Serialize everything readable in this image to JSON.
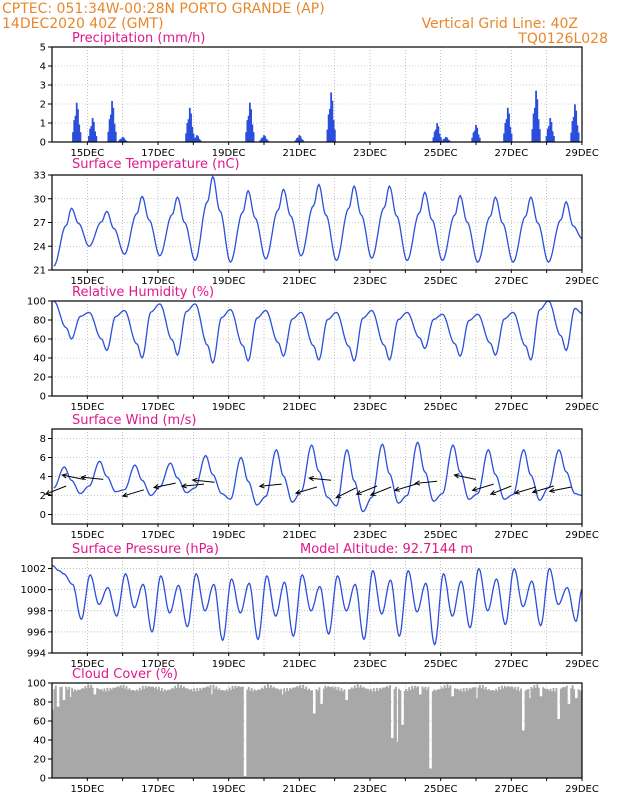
{
  "header": {
    "line1": "CPTEC:   051:34W-00:28N   PORTO GRANDE (AP)",
    "line2": "14DEC2020 40Z (GMT)",
    "grid_note": "Vertical Grid Line: 40Z",
    "code": "TQ0126L028"
  },
  "colors": {
    "header": "#e8872c",
    "title": "#e0188c",
    "series": "#2b4fdb",
    "cloud": "#a8a8a8",
    "grid": "#9a9a9a"
  },
  "chart_data": [
    {
      "type": "bar",
      "title": "Precipitation (mm/h)",
      "x_tick_labels": [
        "15DEC",
        "17DEC",
        "19DEC",
        "21DEC",
        "23DEC",
        "25DEC",
        "27DEC",
        "29DEC"
      ],
      "x_range_days": [
        14.0,
        29.0
      ],
      "ylim": [
        0,
        5
      ],
      "y_ticks": [
        0,
        1,
        2,
        3,
        4,
        5
      ],
      "grid": true,
      "events": [
        {
          "day": 14.7,
          "peak": 2.3
        },
        {
          "day": 15.15,
          "peak": 1.4
        },
        {
          "day": 15.7,
          "peak": 2.4
        },
        {
          "day": 16.0,
          "peak": 0.3
        },
        {
          "day": 17.9,
          "peak": 2.0
        },
        {
          "day": 18.1,
          "peak": 0.4
        },
        {
          "day": 19.6,
          "peak": 2.3
        },
        {
          "day": 20.0,
          "peak": 0.4
        },
        {
          "day": 21.0,
          "peak": 0.4
        },
        {
          "day": 21.9,
          "peak": 2.9
        },
        {
          "day": 24.9,
          "peak": 1.1
        },
        {
          "day": 25.15,
          "peak": 0.3
        },
        {
          "day": 26.0,
          "peak": 1.0
        },
        {
          "day": 26.9,
          "peak": 2.0
        },
        {
          "day": 27.7,
          "peak": 3.0
        },
        {
          "day": 28.1,
          "peak": 1.4
        },
        {
          "day": 28.8,
          "peak": 2.2
        }
      ]
    },
    {
      "type": "line",
      "title": "Surface Temperature (nC)",
      "x_tick_labels": [
        "15DEC",
        "17DEC",
        "19DEC",
        "21DEC",
        "23DEC",
        "25DEC",
        "27DEC",
        "29DEC"
      ],
      "x_range_days": [
        14.0,
        29.0
      ],
      "ylim": [
        21,
        33
      ],
      "y_ticks": [
        21,
        24,
        27,
        30,
        33
      ],
      "grid": true,
      "daily_max": [
        28.8,
        28.4,
        30.3,
        30.2,
        32.8,
        31.0,
        31.2,
        31.8,
        31.6,
        31.6,
        30.8,
        30.4,
        30.2,
        30.2,
        29.6
      ],
      "daily_min": [
        21.0,
        24.0,
        23.0,
        22.8,
        22.2,
        22.0,
        22.4,
        22.8,
        22.2,
        22.5,
        22.2,
        22.2,
        22.0,
        22.0,
        22.0
      ],
      "end_value": 25.0
    },
    {
      "type": "line",
      "title": "Relative Humidity (%)",
      "x_tick_labels": [
        "15DEC",
        "17DEC",
        "19DEC",
        "21DEC",
        "23DEC",
        "25DEC",
        "27DEC",
        "29DEC"
      ],
      "x_range_days": [
        14.0,
        29.0
      ],
      "ylim": [
        0,
        100
      ],
      "y_ticks": [
        0,
        20,
        40,
        60,
        80,
        100
      ],
      "grid": true,
      "daily_max": [
        100,
        88,
        90,
        97,
        97,
        91,
        90,
        88,
        88,
        90,
        88,
        86,
        86,
        88,
        100
      ],
      "daily_min": [
        60,
        48,
        40,
        43,
        35,
        37,
        42,
        38,
        37,
        38,
        50,
        42,
        43,
        38,
        48
      ],
      "end_value": 87
    },
    {
      "type": "line",
      "title": "Surface Wind (m/s)",
      "x_tick_labels": [
        "15DEC",
        "17DEC",
        "19DEC",
        "21DEC",
        "23DEC",
        "25DEC",
        "27DEC",
        "29DEC"
      ],
      "x_range_days": [
        14.0,
        29.0
      ],
      "ylim": [
        -1,
        9
      ],
      "y_ticks": [
        0,
        2,
        4,
        6,
        8
      ],
      "grid": true,
      "daily_max": [
        5.0,
        5.6,
        5.2,
        5.4,
        6.2,
        6.0,
        6.8,
        7.3,
        6.8,
        7.4,
        7.6,
        7.3,
        6.8,
        6.8,
        6.8
      ],
      "daily_min": [
        2.2,
        2.4,
        2.0,
        2.3,
        2.2,
        1.0,
        1.3,
        1.8,
        0.3,
        1.2,
        1.4,
        1.6,
        1.6,
        1.5,
        2.2
      ],
      "vectors": [
        {
          "day": 14.4,
          "y": 3.0,
          "dx": -1,
          "dy": -0.4
        },
        {
          "day": 14.9,
          "y": 3.7,
          "dx": -1,
          "dy": 0.2
        },
        {
          "day": 15.45,
          "y": 3.7,
          "dx": -1,
          "dy": 0.1
        },
        {
          "day": 16.6,
          "y": 2.6,
          "dx": -1,
          "dy": -0.3
        },
        {
          "day": 17.5,
          "y": 3.3,
          "dx": -1,
          "dy": -0.2
        },
        {
          "day": 18.3,
          "y": 3.2,
          "dx": -1,
          "dy": -0.1
        },
        {
          "day": 18.6,
          "y": 3.4,
          "dx": -1,
          "dy": 0.1
        },
        {
          "day": 20.5,
          "y": 3.2,
          "dx": -1,
          "dy": -0.1
        },
        {
          "day": 21.5,
          "y": 2.9,
          "dx": -1,
          "dy": -0.3
        },
        {
          "day": 21.9,
          "y": 3.6,
          "dx": -1,
          "dy": 0.1
        },
        {
          "day": 22.6,
          "y": 2.8,
          "dx": -1,
          "dy": -0.5
        },
        {
          "day": 23.2,
          "y": 3.0,
          "dx": -1,
          "dy": -0.4
        },
        {
          "day": 23.6,
          "y": 2.9,
          "dx": -1,
          "dy": -0.4
        },
        {
          "day": 24.3,
          "y": 3.2,
          "dx": -1,
          "dy": -0.3
        },
        {
          "day": 24.9,
          "y": 3.5,
          "dx": -1,
          "dy": -0.1
        },
        {
          "day": 26.0,
          "y": 3.7,
          "dx": -1,
          "dy": 0.2
        },
        {
          "day": 26.5,
          "y": 3.2,
          "dx": -1,
          "dy": -0.3
        },
        {
          "day": 27.0,
          "y": 3.0,
          "dx": -1,
          "dy": -0.4
        },
        {
          "day": 27.7,
          "y": 2.9,
          "dx": -1,
          "dy": -0.3
        },
        {
          "day": 28.2,
          "y": 3.0,
          "dx": -1,
          "dy": -0.3
        },
        {
          "day": 28.7,
          "y": 2.9,
          "dx": -1,
          "dy": -0.2
        }
      ]
    },
    {
      "type": "line",
      "title": "Surface Pressure (hPa)",
      "annotation": "Model Altitude: 92.7144 m",
      "x_tick_labels": [
        "15DEC",
        "17DEC",
        "19DEC",
        "21DEC",
        "23DEC",
        "25DEC",
        "27DEC",
        "29DEC"
      ],
      "x_range_days": [
        14.0,
        29.0
      ],
      "ylim": [
        994,
        1003
      ],
      "y_ticks": [
        994,
        996,
        998,
        1000,
        1002
      ],
      "grid": true,
      "semidiurnal_max": [
        1002.2,
        1000.5,
        1001.4,
        1000.2,
        1001.5,
        1000.5,
        1001.3,
        1000.4,
        1001.5,
        1000.5,
        1001.0,
        1000.6,
        1001.3,
        1000.7,
        1001.4,
        1000.3,
        1001.3,
        1000.5,
        1001.8,
        1000.9,
        1001.8,
        1000.6,
        1001.5,
        1000.8,
        1002.0,
        1001.0,
        1002.0,
        1000.8,
        1002.0,
        1000.2
      ],
      "semidiurnal_min": [
        1001.5,
        997.2,
        998.6,
        997.5,
        998.3,
        996.0,
        997.8,
        996.5,
        998.0,
        995.2,
        997.8,
        995.3,
        997.5,
        995.6,
        998.0,
        995.8,
        998.0,
        995.3,
        997.7,
        995.6,
        997.9,
        994.8,
        997.5,
        996.4,
        998.0,
        996.7,
        998.4,
        996.6,
        998.6,
        997.0
      ],
      "end_value": 1000.0
    },
    {
      "type": "bar",
      "title": "Cloud Cover (%)",
      "x_tick_labels": [
        "15DEC",
        "17DEC",
        "19DEC",
        "21DEC",
        "23DEC",
        "25DEC",
        "27DEC",
        "29DEC"
      ],
      "x_range_days": [
        14.0,
        29.0
      ],
      "ylim": [
        0,
        100
      ],
      "y_ticks": [
        0,
        20,
        40,
        60,
        80,
        100
      ],
      "grid": true,
      "typical_value": 97,
      "dips": [
        {
          "day": 14.0,
          "value": 72
        },
        {
          "day": 14.15,
          "value": 75
        },
        {
          "day": 14.3,
          "value": 82
        },
        {
          "day": 14.5,
          "value": 85
        },
        {
          "day": 15.2,
          "value": 88
        },
        {
          "day": 18.5,
          "value": 88
        },
        {
          "day": 19.45,
          "value": 2
        },
        {
          "day": 20.5,
          "value": 88
        },
        {
          "day": 21.4,
          "value": 68
        },
        {
          "day": 21.6,
          "value": 78
        },
        {
          "day": 22.3,
          "value": 82
        },
        {
          "day": 23.6,
          "value": 42
        },
        {
          "day": 23.75,
          "value": 38
        },
        {
          "day": 23.9,
          "value": 56
        },
        {
          "day": 24.4,
          "value": 88
        },
        {
          "day": 24.7,
          "value": 10
        },
        {
          "day": 25.3,
          "value": 86
        },
        {
          "day": 26.0,
          "value": 84
        },
        {
          "day": 27.3,
          "value": 50
        },
        {
          "day": 27.5,
          "value": 84
        },
        {
          "day": 27.8,
          "value": 86
        },
        {
          "day": 28.3,
          "value": 62
        },
        {
          "day": 28.6,
          "value": 78
        },
        {
          "day": 28.8,
          "value": 84
        }
      ]
    }
  ]
}
